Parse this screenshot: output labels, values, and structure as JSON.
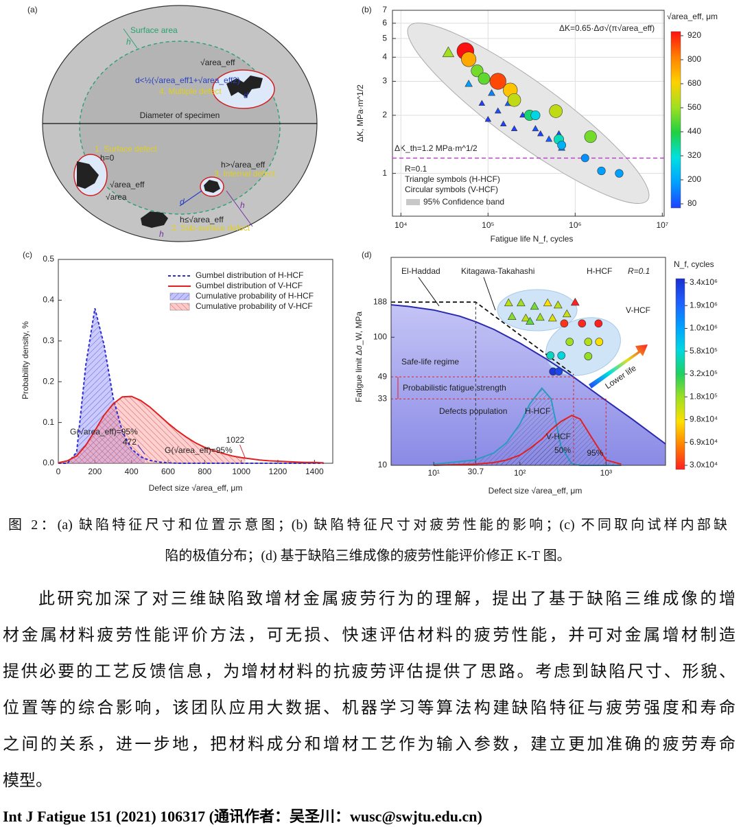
{
  "figure": {
    "panel_a": {
      "label": "(a)",
      "surface_area": "Surface area",
      "h_top": "h",
      "multiple_formula": "d<½(√area_eff1+√area_eff2)",
      "multiple_area": "√area_eff",
      "multiple_d": "d",
      "multiple": "4. Multiple defect",
      "diameter": "Diameter of specimen",
      "surface": "1. Surface defect",
      "surface_h": "h=0",
      "surface_area_eff": "√area_eff",
      "surface_area_raw": "√area",
      "internal_cond": "h>√area_eff",
      "internal": "3. Internal defect",
      "d": "d",
      "h": "h",
      "subsurface_cond": "h≤√area_eff",
      "subsurface": "2. Sub-surface defect",
      "subsurface_h": "h"
    },
    "panel_b": {
      "label": "(b)",
      "type": "scatter",
      "x_label": "Fatigue life N_f, cycles",
      "y_label": "ΔK, MPa·m^1/2",
      "log_x": true,
      "log_y": true,
      "xlim": [
        8000,
        10500000
      ],
      "ylim": [
        0.6,
        7
      ],
      "xticks": [
        {
          "value": 10000,
          "label": "10⁴"
        },
        {
          "value": 100000,
          "label": "10⁵"
        },
        {
          "value": 1000000,
          "label": "10⁶"
        },
        {
          "value": 10000000,
          "label": "10⁷"
        }
      ],
      "yticks": [
        1,
        2,
        3,
        4,
        5,
        6,
        7
      ],
      "formula": "ΔK=0.65·Δσ√(π√area_eff)",
      "threshold": 1.2,
      "threshold_label": "ΔK_th=1.2 MPa·m^1/2",
      "notes": [
        "R=0.1",
        "Triangle symbols (H-HCF)",
        "Circular symbols (V-HCF)"
      ],
      "band_label": "95% Confidence band",
      "colorbar": {
        "title": "√area_eff, μm",
        "ticks": [
          80,
          200,
          320,
          440,
          560,
          680,
          800,
          920
        ],
        "colors": [
          "#2040ff",
          "#00a0ff",
          "#00e0e0",
          "#20d040",
          "#a0e020",
          "#ffd000",
          "#ff8000",
          "#ff1010"
        ]
      },
      "series": [
        {
          "marker": "triangle",
          "x": [
            35000,
            60000,
            85000,
            100000,
            110000,
            130000,
            130000,
            150000,
            170000,
            200000,
            250000,
            350000,
            400000,
            500000,
            650000,
            700000
          ],
          "values": [
            4.2,
            2.9,
            2.3,
            1.9,
            2.6,
            3.1,
            2.1,
            1.8,
            2.3,
            1.7,
            2.0,
            1.7,
            1.6,
            1.5,
            1.6,
            1.35
          ],
          "size": [
            560,
            200,
            80,
            80,
            160,
            440,
            100,
            80,
            120,
            80,
            80,
            100,
            80,
            120,
            100,
            150
          ]
        },
        {
          "marker": "circle",
          "x": [
            55000,
            60000,
            75000,
            90000,
            130000,
            180000,
            200000,
            300000,
            350000,
            600000,
            650000,
            700000,
            1500000,
            1300000,
            2000000,
            3200000
          ],
          "values": [
            4.3,
            3.9,
            3.4,
            3.1,
            3.0,
            2.7,
            2.4,
            2.0,
            2.0,
            2.1,
            1.5,
            1.4,
            1.55,
            1.2,
            1.03,
            1.0
          ],
          "size": [
            920,
            740,
            520,
            500,
            860,
            700,
            600,
            400,
            300,
            600,
            350,
            230,
            520,
            180,
            200,
            200
          ]
        }
      ]
    },
    "panel_c": {
      "label": "(c)",
      "type": "line",
      "x_label": "Defect size √area_eff, μm",
      "y_label": "Probability density, %",
      "xlim": [
        0,
        1500
      ],
      "ylim": [
        0,
        0.5
      ],
      "xticks": [
        0,
        200,
        400,
        600,
        800,
        1000,
        1200,
        1400
      ],
      "yticks": [
        {
          "value": 0,
          "label": "0.0"
        },
        0.1,
        0.2,
        0.3,
        0.4,
        0.5
      ],
      "x": [
        0,
        50,
        100,
        150,
        200,
        250,
        300,
        350,
        400,
        450,
        500,
        550,
        600,
        650,
        700,
        750,
        800,
        850,
        900,
        950,
        1000,
        1050,
        1100,
        1150,
        1200,
        1250,
        1300,
        1350,
        1400,
        1450
      ],
      "series": [
        {
          "name": "Gumbel distribution of H-HCF",
          "color": "#2b2bd0",
          "dashed": true,
          "values": [
            0,
            0,
            0.027,
            0.24,
            0.38,
            0.29,
            0.16,
            0.078,
            0.035,
            0.016,
            0.007,
            0.003,
            0.001,
            0,
            0,
            0,
            0,
            0,
            0,
            0,
            0,
            0,
            0,
            0,
            0,
            0,
            0,
            0,
            0,
            0
          ]
        },
        {
          "name": "Gumbel distribution of V-HCF",
          "color": "#e02020",
          "dashed": false,
          "values": [
            0.001,
            0.006,
            0.018,
            0.044,
            0.08,
            0.118,
            0.146,
            0.163,
            0.164,
            0.154,
            0.138,
            0.118,
            0.098,
            0.08,
            0.064,
            0.05,
            0.039,
            0.031,
            0.024,
            0.018,
            0.014,
            0.011,
            0.008,
            0.006,
            0.005,
            0.004,
            0.003,
            0.002,
            0.002,
            0.001
          ]
        }
      ],
      "areas": [
        {
          "name": "Cumulative probability of H-HCF",
          "color": "#7a7aff",
          "limit": 472,
          "quantile_label": "G(√area_eff)=95%"
        },
        {
          "name": "Cumulative probability of V-HCF",
          "color": "#ff8a8a",
          "limit": 1022,
          "quantile_label": "G(√area_eff)=95%"
        }
      ]
    },
    "panel_d": {
      "label": "(d)",
      "type": "kt",
      "x_label": "Defect size √area_eff, μm",
      "y_label": "Fatigue limit Δσ_W, MPa",
      "log_x": true,
      "log_y": true,
      "xlim": [
        3.2,
        4900
      ],
      "ylim": [
        10,
        420
      ],
      "xticks": [
        {
          "value": 10,
          "label": "10¹"
        },
        {
          "value": 100,
          "label": "10²"
        },
        {
          "value": 1000,
          "label": "10³"
        }
      ],
      "yticks": [
        10,
        100,
        188
      ],
      "knee": 30.7,
      "strength": [
        49,
        33
      ],
      "quantile_lines": [
        {
          "x": 420,
          "label": "50%"
        },
        {
          "x": 1000,
          "label": "95%"
        }
      ],
      "el_haddad": {
        "name": "El-Haddad",
        "x": [
          3.2,
          5,
          10,
          20,
          30.7,
          50,
          100,
          200,
          400,
          1000,
          2000,
          4900
        ],
        "values": [
          179,
          174,
          163,
          146,
          132,
          115,
          90,
          68,
          50,
          32,
          23,
          14.7
        ]
      },
      "kitagawa": {
        "name": "Kitagawa-Takahashi",
        "x": [
          3.2,
          30.7,
          420
        ],
        "values": [
          188,
          188,
          51
        ]
      },
      "texts": {
        "h_group": "H-HCF",
        "r": "R=0.1",
        "v_group": "V-HCF",
        "safe": "Safe-life regime",
        "strength_label": "Probabilistic fatigue strength",
        "population": "Defects population",
        "lower": "Lower life"
      },
      "population": [
        {
          "name": "H-HCF",
          "color": "#2a9ac0",
          "x": [
            10,
            30,
            50,
            70,
            100,
            130,
            180,
            230,
            300,
            400,
            500,
            700,
            1000,
            1500
          ],
          "values": [
            10.2,
            11,
            12.5,
            15,
            21,
            30,
            40,
            33,
            14,
            10.3,
            10,
            10,
            10,
            10
          ]
        },
        {
          "name": "V-HCF",
          "color": "#e02020",
          "x": [
            10,
            30,
            50,
            70,
            100,
            130,
            180,
            230,
            300,
            400,
            500,
            700,
            1000,
            1500
          ],
          "values": [
            10,
            10.2,
            10.5,
            11,
            12,
            13.5,
            16,
            19,
            22,
            24.5,
            23,
            16,
            11,
            10.2
          ]
        }
      ],
      "colorbar": {
        "title": "N_f, cycles",
        "ticks": [
          {
            "value": 3400000,
            "label": "3.4x10⁶"
          },
          {
            "value": 1900000,
            "label": "1.9x10⁶"
          },
          {
            "value": 1000000,
            "label": "1.0x10⁶"
          },
          {
            "value": 580000,
            "label": "5.8x10⁵"
          },
          {
            "value": 320000,
            "label": "3.2x10⁵"
          },
          {
            "value": 180000,
            "label": "1.8x10⁵"
          },
          {
            "value": 98000,
            "label": "9.8x10⁴"
          },
          {
            "value": 69000,
            "label": "6.9x10⁴"
          },
          {
            "value": 30000,
            "label": "3.0x10⁴"
          }
        ],
        "colors": [
          "#1a2fd0",
          "#1f5fff",
          "#00a0ff",
          "#00d8e0",
          "#20d060",
          "#a0e020",
          "#ffe000",
          "#ff8000",
          "#ff2020"
        ]
      },
      "series": [
        {
          "marker": "triangle",
          "x": [
            74,
            103,
            148,
            210,
            277,
            438,
            81,
            117,
            172,
            239,
            351,
            131
          ],
          "values": [
            184,
            184,
            173,
            184,
            177,
            186,
            144,
            140,
            142,
            140,
            151,
            132
          ],
          "nf": [
            150000,
            180000,
            220000,
            98000,
            150000,
            30000,
            200000,
            150000,
            180000,
            120000,
            140000,
            240000
          ]
        },
        {
          "marker": "circle",
          "x": [
            327,
            526,
            817,
            378,
            621,
            832,
            621,
            226,
            303,
            243,
            282
          ],
          "values": [
            128,
            128,
            128,
            92,
            92,
            92,
            71,
            72,
            72,
            54,
            54
          ],
          "nf": [
            35000,
            32000,
            30000,
            180000,
            160000,
            100000,
            190000,
            500000,
            580000,
            3000000,
            2500000
          ]
        }
      ]
    }
  },
  "caption": [
    "图 2：(a) 缺陷特征尺寸和位置示意图；(b) 缺陷特征尺寸对疲劳性能的影响；(c) 不同取向试样内部缺",
    "陷的极值分布；(d) 基于缺陷三维成像的疲劳性能评价修正 K-T 图。"
  ],
  "paragraph": [
    "此研究加深了对三维缺陷致增材金属疲劳行为的理解，提出了基于缺陷三维成像的增",
    "材金属材料疲劳性能评价方法，可无损、快速评估材料的疲劳性能，并可对金属增材制造",
    "提供必要的工艺反馈信息，为增材材料的抗疲劳评估提供了思路。考虑到缺陷尺寸、形貌、",
    "位置等的综合影响，该团队应用大数据、机器学习等算法构建缺陷特征与疲劳强度和寿命",
    "之间的关系，进一步地，把材料成分和增材工艺作为输入参数，建立更加准确的疲劳寿命",
    "模型。"
  ],
  "reference": "Int J Fatigue 151 (2021) 106317 (通讯作者：吴圣川：wusc@swjtu.edu.cn)"
}
